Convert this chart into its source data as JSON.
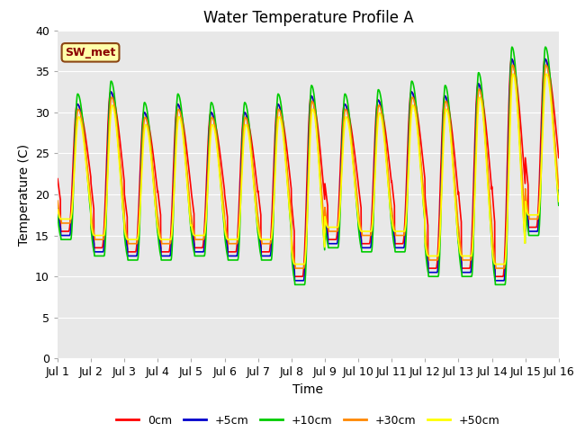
{
  "title": "Water Temperature Profile A",
  "xlabel": "Time",
  "ylabel": "Temperature (C)",
  "xlim": [
    0,
    15
  ],
  "ylim": [
    0,
    40
  ],
  "yticks": [
    0,
    5,
    10,
    15,
    20,
    25,
    30,
    35,
    40
  ],
  "xtick_labels": [
    "Jul 1",
    "Jul 2",
    "Jul 3",
    "Jul 4",
    "Jul 5",
    "Jul 6",
    "Jul 7",
    "Jul 8",
    "Jul 9",
    "Jul 10",
    "Jul 11",
    "Jul 12",
    "Jul 13",
    "Jul 14",
    "Jul 15",
    "Jul 16"
  ],
  "legend_label": "SW_met",
  "series_labels": [
    "0cm",
    "+5cm",
    "+10cm",
    "+30cm",
    "+50cm"
  ],
  "series_colors": [
    "#ff0000",
    "#0000cc",
    "#00cc00",
    "#ff8800",
    "#ffff00"
  ],
  "background_color": "#e8e8e8",
  "title_fontsize": 12,
  "axis_fontsize": 10,
  "tick_fontsize": 9
}
